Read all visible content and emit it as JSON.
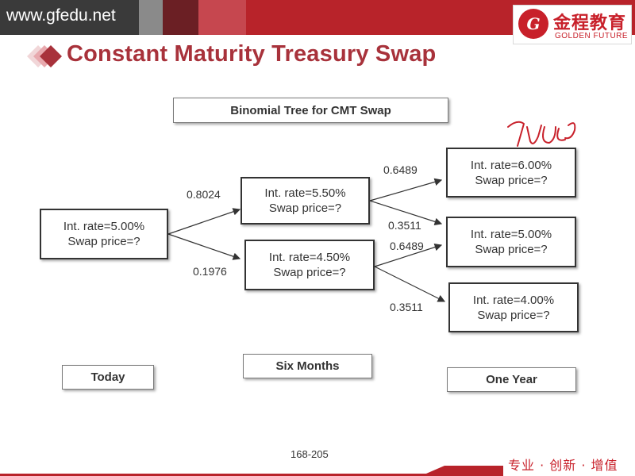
{
  "header": {
    "site_url": "www.gfedu.net",
    "logo_cn": "金程教育",
    "logo_en": "GOLDEN FUTURE",
    "logo_mark": "G",
    "colors": {
      "banner": "#b8232a",
      "accent": "#a8323b",
      "dark1": "#3a3a3a",
      "dark2": "#7d7d7d"
    }
  },
  "slide": {
    "title": "Constant Maturity Treasury Swap",
    "subtitle": "Binomial Tree for CMT Swap",
    "page_number": "168-205"
  },
  "tree": {
    "root": {
      "rate": "Int. rate=5.00%",
      "price": "Swap price=?"
    },
    "mid_up": {
      "rate": "Int. rate=5.50%",
      "price": "Swap price=?"
    },
    "mid_down": {
      "rate": "Int. rate=4.50%",
      "price": "Swap price=?"
    },
    "end_up": {
      "rate": "Int. rate=6.00%",
      "price": "Swap price=?"
    },
    "end_mid": {
      "rate": "Int. rate=5.00%",
      "price": "Swap price=?"
    },
    "end_down": {
      "rate": "Int. rate=4.00%",
      "price": "Swap price=?"
    },
    "probs": {
      "root_up": "0.8024",
      "root_down": "0.1976",
      "upper_up": "0.6489",
      "upper_down": "0.3511",
      "lower_up": "0.6489",
      "lower_down": "0.3511"
    }
  },
  "time_labels": {
    "today": "Today",
    "six_months": "Six Months",
    "one_year": "One Year"
  },
  "footer": {
    "slogan": "专业 · 创新 · 增值"
  }
}
